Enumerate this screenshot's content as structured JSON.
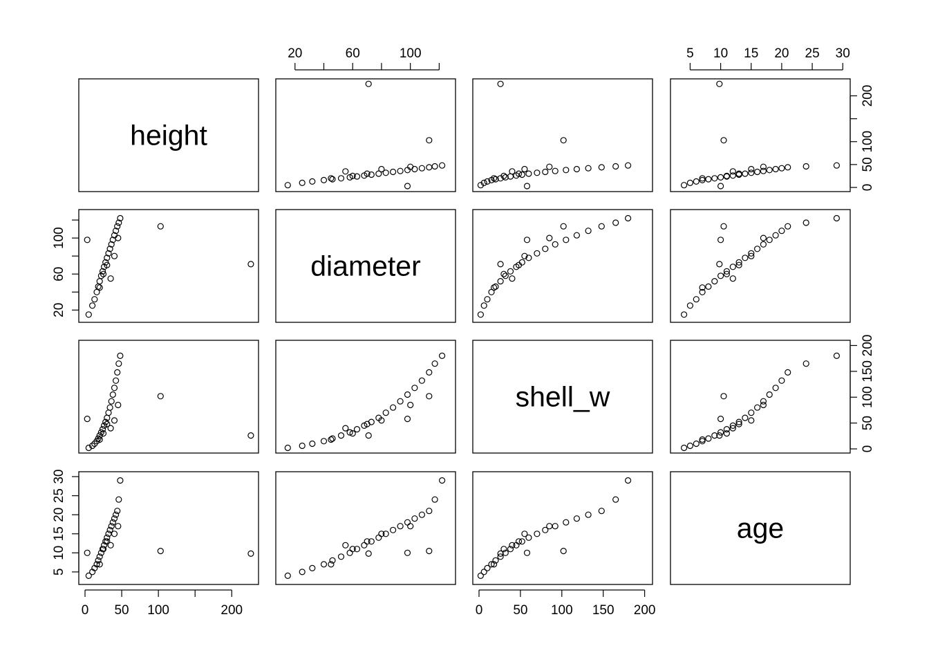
{
  "chart_data": {
    "type": "scatter",
    "variables": [
      "height",
      "diameter",
      "shell_w",
      "age"
    ],
    "axes": {
      "height": {
        "range": [
          0,
          228
        ],
        "ticks": [
          0,
          50,
          100,
          150,
          200
        ],
        "tick_labels": [
          "0",
          "50",
          "100",
          "",
          "200"
        ]
      },
      "diameter": {
        "range": [
          11,
          127
        ],
        "ticks": [
          20,
          40,
          60,
          80,
          100,
          120
        ],
        "tick_labels": [
          "20",
          "",
          "60",
          "",
          "100",
          ""
        ]
      },
      "shell_w": {
        "range": [
          0,
          202
        ],
        "ticks": [
          0,
          50,
          100,
          150,
          200
        ],
        "tick_labels": [
          "0",
          "50",
          "100",
          "150",
          "200"
        ]
      },
      "age": {
        "range": [
          2.8,
          30.2
        ],
        "ticks": [
          5,
          10,
          15,
          20,
          25,
          30
        ],
        "tick_labels": [
          "5",
          "10",
          "15",
          "20",
          "25",
          "30"
        ]
      }
    },
    "axis_placement": {
      "bottom": [
        "height",
        "shell_w"
      ],
      "top": [
        "diameter",
        "age"
      ],
      "left": [
        "diameter",
        "age"
      ],
      "right": [
        "height",
        "shell_w"
      ]
    },
    "observations": {
      "height": [
        5,
        10,
        13,
        16,
        18,
        20,
        22,
        24,
        26,
        28,
        30,
        32,
        34,
        36,
        38,
        40,
        42,
        44,
        46,
        48,
        3,
        103,
        226,
        35,
        40,
        45,
        20,
        25,
        30
      ],
      "diameter": [
        15,
        25,
        32,
        40,
        46,
        52,
        58,
        63,
        68,
        73,
        78,
        83,
        88,
        93,
        98,
        103,
        108,
        113,
        117,
        122,
        98,
        113,
        71,
        55,
        80,
        100,
        45,
        60,
        70
      ],
      "shell_w": [
        2,
        6,
        10,
        15,
        20,
        26,
        32,
        38,
        45,
        52,
        60,
        70,
        80,
        92,
        105,
        118,
        132,
        148,
        165,
        180,
        58,
        102,
        26,
        40,
        55,
        85,
        18,
        30,
        48
      ],
      "age": [
        4,
        5,
        6,
        7,
        8,
        9,
        10,
        11,
        12,
        13,
        14,
        15,
        16,
        17,
        18,
        19,
        20,
        21,
        24,
        29,
        10,
        10.5,
        9.8,
        12,
        15,
        17,
        7,
        11,
        13
      ]
    },
    "grid": false,
    "legend": "none"
  }
}
